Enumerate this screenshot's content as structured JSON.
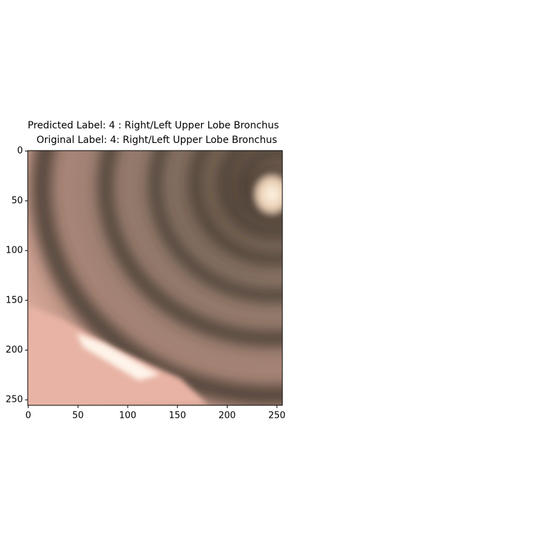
{
  "chart_data": {
    "type": "image",
    "title": [
      "Predicted Label: 4 : Right/Left Upper Lobe Bronchus",
      "Original Label: 4: Right/Left Upper Lobe Bronchus"
    ],
    "xlim": [
      -0.5,
      255.5
    ],
    "ylim": [
      255.5,
      -0.5
    ],
    "xticks": [
      0,
      50,
      100,
      150,
      200,
      250
    ],
    "yticks": [
      0,
      50,
      100,
      150,
      200,
      250
    ]
  }
}
